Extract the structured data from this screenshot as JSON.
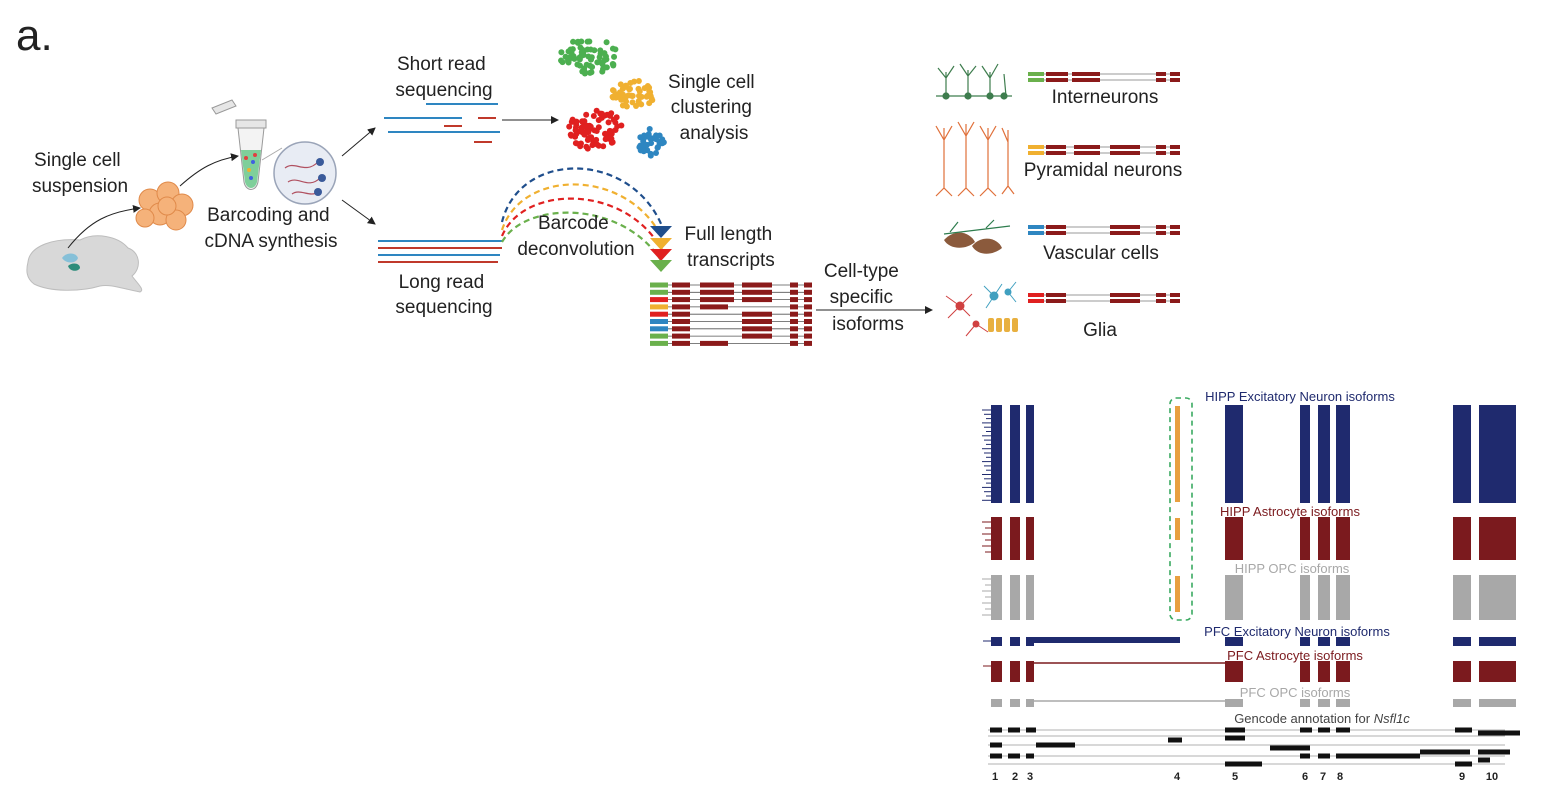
{
  "panel_label": "a.",
  "workflow": {
    "single_cell_suspension": [
      "Single cell",
      "suspension"
    ],
    "barcoding": [
      "Barcoding and",
      "cDNA synthesis"
    ],
    "short_read": [
      "Short read",
      "sequencing"
    ],
    "long_read": [
      "Long read",
      "sequencing"
    ],
    "clustering": [
      "Single cell",
      "clustering",
      "analysis"
    ],
    "barcode_deconvolution": [
      "Barcode",
      "deconvolution"
    ],
    "full_length": [
      "Full length",
      "transcripts"
    ],
    "cell_type_specific": [
      "Cell-type",
      "specific",
      "isoforms"
    ]
  },
  "cell_types": [
    {
      "name": "Interneurons",
      "color": "#6ab04c"
    },
    {
      "name": "Pyramidal neurons",
      "color": "#f0b030"
    },
    {
      "name": "Vascular cells",
      "color": "#2e86c1"
    },
    {
      "name": "Glia",
      "color": "#e02020"
    }
  ],
  "colors": {
    "exon": "#8b1a1a",
    "excitatory": "#1f2a6e",
    "astrocyte": "#7b1a1e",
    "opc": "#a8a8a8",
    "highlight": "#e8a040",
    "dashed_box": "#3aaa60"
  },
  "tracks": {
    "hipp_excitatory": "HIPP Excitatory Neuron isoforms",
    "hipp_astrocyte": "HIPP Astrocyte isoforms",
    "hipp_opc": "HIPP OPC isoforms",
    "pfc_excitatory": "PFC Excitatory Neuron isoforms",
    "pfc_astrocyte": "PFC Astrocyte isoforms",
    "pfc_opc": "PFC OPC isoforms",
    "gencode_prefix": "Gencode annotation for ",
    "gencode_gene": "Nsfl1c"
  },
  "exon_numbers": [
    "1",
    "2",
    "3",
    "4",
    "5",
    "6",
    "7",
    "8",
    "9",
    "10"
  ]
}
